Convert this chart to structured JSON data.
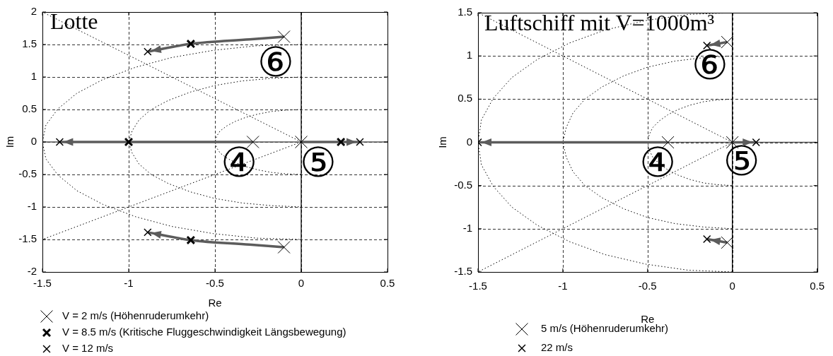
{
  "chart_data": [
    {
      "type": "scatter",
      "title": "Lotte",
      "xlabel": "Re",
      "ylabel": "Im",
      "xlim": [
        -1.5,
        0.5
      ],
      "ylim": [
        -2,
        2
      ],
      "xticks": [
        -1.5,
        -1,
        -0.5,
        0,
        0.5
      ],
      "yticks": [
        -2,
        -1.5,
        -1,
        -0.5,
        0,
        0.5,
        1,
        1.5,
        2
      ],
      "grid": true,
      "legend": "bottom",
      "ref_lines": [
        {
          "axis": "x",
          "value": 0,
          "color": "#000000"
        },
        {
          "axis": "y",
          "value": 0,
          "color": "#555555"
        }
      ],
      "annotations": [
        "⑥",
        {
          "text": "④",
          "x": -0.36,
          "y": -0.37
        },
        "⑤"
      ],
      "series": [
        {
          "type": "scatter",
          "name": "V = 2 m/s (Höhenruderumkehr)",
          "color": "#000000",
          "marker": "cross",
          "x": [
            -0.1,
            -0.1,
            -0.28,
            0
          ],
          "values": [
            1.62,
            -1.62,
            0,
            0
          ]
        },
        {
          "type": "scatter",
          "name": "V = 8.5 m/s (Kritische Fluggeschwindigkeit Längsbewegung)",
          "color": "#000000",
          "marker": "cross",
          "x": [
            -0.64,
            -0.64,
            -1,
            0.23
          ],
          "values": [
            1.51,
            -1.51,
            0,
            0
          ]
        },
        {
          "type": "scatter",
          "name": "V = 12 m/s",
          "color": "#000000",
          "marker": "cross",
          "x": [
            -0.89,
            -0.89,
            -1.4,
            0.34
          ],
          "values": [
            1.39,
            -1.39,
            0,
            0
          ]
        },
        {
          "type": "line",
          "color": "#5c5c5c",
          "line_style": "solid",
          "x": [
            -0.1,
            -0.3,
            -0.64,
            -0.89
          ],
          "values": [
            1.62,
            1.58,
            1.51,
            1.39
          ]
        },
        {
          "type": "line",
          "color": "#5c5c5c",
          "line_style": "solid",
          "x": [
            -0.1,
            -0.3,
            -0.64,
            -0.89
          ],
          "values": [
            -1.62,
            -1.58,
            -1.51,
            -1.39
          ]
        },
        {
          "type": "line",
          "color": "#5c5c5c",
          "line_style": "solid",
          "x": [
            -0.28,
            -1.4
          ],
          "values": [
            0,
            0
          ]
        },
        {
          "type": "line",
          "color": "#5c5c5c",
          "line_style": "solid",
          "x": [
            0,
            0.34
          ],
          "values": [
            0,
            0
          ]
        },
        {
          "type": "line",
          "color": "#000000",
          "line_style": "dotted",
          "x": [
            0,
            -0.09,
            -0.17,
            -0.25,
            -0.32,
            -0.38,
            -0.43,
            -0.47,
            -0.49,
            -0.5,
            -0.49,
            -0.47,
            -0.43,
            -0.38,
            -0.32,
            -0.25,
            -0.17,
            -0.09,
            0
          ],
          "values": [
            0.5,
            0.49,
            0.47,
            0.43,
            0.38,
            0.32,
            0.25,
            0.17,
            0.09,
            0,
            -0.09,
            -0.17,
            -0.25,
            -0.32,
            -0.38,
            -0.43,
            -0.47,
            -0.49,
            -0.5
          ]
        },
        {
          "type": "line",
          "color": "#000000",
          "line_style": "dotted",
          "x": [
            0,
            -0.17,
            -0.34,
            -0.5,
            -0.64,
            -0.77,
            -0.87,
            -0.94,
            -0.98,
            -1,
            -0.98,
            -0.94,
            -0.87,
            -0.77,
            -0.64,
            -0.5,
            -0.34,
            -0.17,
            0
          ],
          "values": [
            1,
            0.98,
            0.94,
            0.87,
            0.77,
            0.64,
            0.5,
            0.34,
            0.17,
            0,
            -0.17,
            -0.34,
            -0.5,
            -0.64,
            -0.77,
            -0.87,
            -0.94,
            -0.98,
            -1
          ]
        },
        {
          "type": "line",
          "color": "#000000",
          "line_style": "dotted",
          "x": [
            0,
            -0.26,
            -0.51,
            -0.75,
            -0.96,
            -1.15,
            -1.3,
            -1.41,
            -1.48,
            -1.5,
            -1.48,
            -1.41,
            -1.3,
            -1.15,
            -0.96,
            -0.75,
            -0.51,
            -0.26,
            0
          ],
          "values": [
            1.5,
            1.48,
            1.41,
            1.3,
            1.15,
            0.96,
            0.75,
            0.51,
            0.26,
            0,
            -0.26,
            -0.51,
            -0.75,
            -0.96,
            -1.15,
            -1.3,
            -1.41,
            -1.48,
            -1.5
          ]
        },
        {
          "type": "line",
          "color": "#000000",
          "line_style": "dotted",
          "x": [
            0,
            -1.5
          ],
          "values": [
            0,
            2
          ]
        },
        {
          "type": "line",
          "color": "#000000",
          "line_style": "dotted",
          "x": [
            0,
            -1.5
          ],
          "values": [
            0,
            -1.5
          ]
        }
      ]
    },
    {
      "type": "scatter",
      "title": "Luftschiff mit V=1000m³",
      "xlabel": "Re",
      "ylabel": "Im",
      "xlim": [
        -1.5,
        0.5
      ],
      "ylim": [
        -1.5,
        1.5
      ],
      "xticks": [
        -1.5,
        -1,
        -0.5,
        0,
        0.5
      ],
      "yticks": [
        -1.5,
        -1,
        -0.5,
        0,
        0.5,
        1,
        1.5
      ],
      "grid": true,
      "legend": "bottom",
      "ref_lines": [
        {
          "axis": "x",
          "value": 0,
          "color": "#000000"
        },
        {
          "axis": "y",
          "value": 0,
          "color": "#555555"
        }
      ],
      "annotations": [
        "⑥",
        {
          "text": "④",
          "x": -0.44,
          "y": -0.27
        },
        "⑤"
      ],
      "series": [
        {
          "type": "scatter",
          "name": "5 m/s (Höhenruderumkehr)",
          "color": "#000000",
          "marker": "cross",
          "x": [
            -0.03,
            -0.03,
            -0.38,
            0
          ],
          "values": [
            1.16,
            -1.16,
            0,
            0
          ]
        },
        {
          "type": "scatter",
          "name": "22 m/s",
          "color": "#000000",
          "marker": "cross",
          "x": [
            -0.15,
            -0.15,
            -1.5,
            0.14
          ],
          "values": [
            1.12,
            -1.12,
            0,
            0
          ]
        },
        {
          "type": "line",
          "color": "#5c5c5c",
          "line_style": "solid",
          "x": [
            -0.03,
            -0.15
          ],
          "values": [
            1.16,
            1.12
          ]
        },
        {
          "type": "line",
          "color": "#5c5c5c",
          "line_style": "solid",
          "x": [
            -0.03,
            -0.15
          ],
          "values": [
            -1.16,
            -1.12
          ]
        },
        {
          "type": "line",
          "color": "#5c5c5c",
          "line_style": "solid",
          "x": [
            -0.38,
            -1.5
          ],
          "values": [
            0,
            0
          ]
        },
        {
          "type": "line",
          "color": "#5c5c5c",
          "line_style": "solid",
          "x": [
            0,
            0.14
          ],
          "values": [
            0,
            0
          ]
        },
        {
          "type": "line",
          "color": "#000000",
          "line_style": "dotted",
          "x": [
            0,
            -0.09,
            -0.17,
            -0.25,
            -0.32,
            -0.38,
            -0.43,
            -0.47,
            -0.49,
            -0.5,
            -0.49,
            -0.47,
            -0.43,
            -0.38,
            -0.32,
            -0.25,
            -0.17,
            -0.09,
            0
          ],
          "values": [
            0.5,
            0.49,
            0.47,
            0.43,
            0.38,
            0.32,
            0.25,
            0.17,
            0.09,
            0,
            -0.09,
            -0.17,
            -0.25,
            -0.32,
            -0.38,
            -0.43,
            -0.47,
            -0.49,
            -0.5
          ]
        },
        {
          "type": "line",
          "color": "#000000",
          "line_style": "dotted",
          "x": [
            0,
            -0.17,
            -0.34,
            -0.5,
            -0.64,
            -0.77,
            -0.87,
            -0.94,
            -0.98,
            -1,
            -0.98,
            -0.94,
            -0.87,
            -0.77,
            -0.64,
            -0.5,
            -0.34,
            -0.17,
            0
          ],
          "values": [
            1,
            0.98,
            0.94,
            0.87,
            0.77,
            0.64,
            0.5,
            0.34,
            0.17,
            0,
            -0.17,
            -0.34,
            -0.5,
            -0.64,
            -0.77,
            -0.87,
            -0.94,
            -0.98,
            -1
          ]
        },
        {
          "type": "line",
          "color": "#000000",
          "line_style": "dotted",
          "x": [
            0,
            -0.26,
            -0.51,
            -0.75,
            -0.96,
            -1.15,
            -1.3,
            -1.41,
            -1.48,
            -1.5,
            -1.48,
            -1.41,
            -1.3,
            -1.15,
            -0.96,
            -0.75,
            -0.51,
            -0.26,
            0
          ],
          "values": [
            1.5,
            1.48,
            1.41,
            1.3,
            1.15,
            0.96,
            0.75,
            0.51,
            0.26,
            0,
            -0.26,
            -0.51,
            -0.75,
            -0.96,
            -1.15,
            -1.3,
            -1.41,
            -1.48,
            -1.5
          ]
        },
        {
          "type": "line",
          "color": "#000000",
          "line_style": "dotted",
          "x": [
            0,
            -1.5
          ],
          "values": [
            0,
            1.5
          ]
        },
        {
          "type": "line",
          "color": "#000000",
          "line_style": "dotted",
          "x": [
            0,
            -1.5
          ],
          "values": [
            0,
            -1.5
          ]
        }
      ]
    }
  ]
}
